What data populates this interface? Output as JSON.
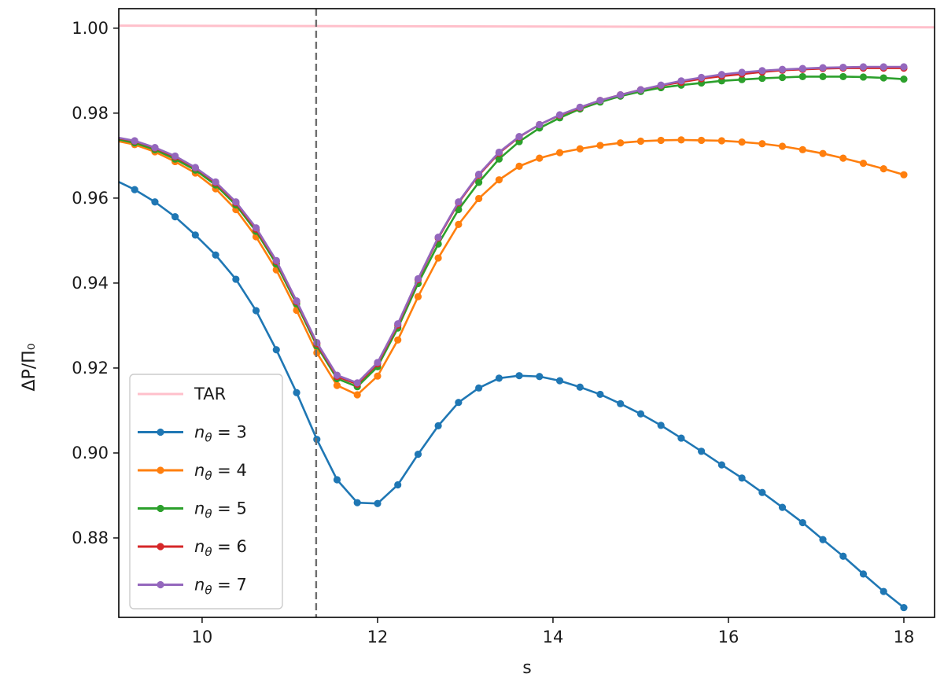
{
  "chart_data": {
    "type": "line",
    "title": "",
    "xlabel": "s",
    "ylabel": "ΔP/Π₀",
    "xlim": [
      9.05,
      18.35
    ],
    "ylim": [
      0.8613,
      1.0046
    ],
    "xticks": [
      10,
      12,
      14,
      16,
      18
    ],
    "xtick_labels": [
      "10",
      "12",
      "14",
      "16",
      "18"
    ],
    "yticks": [
      0.88,
      0.9,
      0.92,
      0.94,
      0.96,
      0.98,
      1.0
    ],
    "ytick_labels": [
      "0.88",
      "0.90",
      "0.92",
      "0.94",
      "0.96",
      "0.98",
      "1.00"
    ],
    "grid": false,
    "legend_position": "lower-left",
    "vline": {
      "x": 11.3,
      "style": "dashed",
      "color": "#6e6e6e"
    },
    "x": [
      9.0,
      9.231,
      9.462,
      9.692,
      9.923,
      10.154,
      10.385,
      10.615,
      10.846,
      11.077,
      11.308,
      11.538,
      11.769,
      12.0,
      12.231,
      12.462,
      12.692,
      12.923,
      13.154,
      13.385,
      13.615,
      13.846,
      14.077,
      14.308,
      14.538,
      14.769,
      15.0,
      15.231,
      15.462,
      15.692,
      15.923,
      16.154,
      16.385,
      16.615,
      16.846,
      17.077,
      17.308,
      17.538,
      17.769,
      18.0
    ],
    "series": [
      {
        "name": "TAR",
        "color": "#ffc0cb",
        "markers": false,
        "x": [
          9.0,
          18.35
        ],
        "values": [
          1.0006,
          1.0002
        ]
      },
      {
        "name": "3",
        "color": "#1f77b4",
        "markers": true,
        "values": [
          0.9643,
          0.962,
          0.9591,
          0.9556,
          0.9513,
          0.9466,
          0.9409,
          0.9335,
          0.9243,
          0.9142,
          0.9032,
          0.8937,
          0.8883,
          0.8881,
          0.8925,
          0.8997,
          0.9064,
          0.9119,
          0.9153,
          0.9176,
          0.9182,
          0.918,
          0.917,
          0.9155,
          0.9138,
          0.9116,
          0.9092,
          0.9065,
          0.9035,
          0.9004,
          0.8972,
          0.8941,
          0.8907,
          0.8872,
          0.8836,
          0.8796,
          0.8757,
          0.8715,
          0.8674,
          0.8636
        ]
      },
      {
        "name": "4",
        "color": "#ff7f0e",
        "markers": true,
        "values": [
          0.9736,
          0.9726,
          0.9709,
          0.9686,
          0.9659,
          0.9622,
          0.9573,
          0.9509,
          0.9431,
          0.9336,
          0.9236,
          0.9159,
          0.9137,
          0.9181,
          0.9266,
          0.9368,
          0.9459,
          0.9538,
          0.9599,
          0.9643,
          0.9675,
          0.9694,
          0.9707,
          0.9716,
          0.9724,
          0.973,
          0.9734,
          0.9736,
          0.9737,
          0.9736,
          0.9735,
          0.9732,
          0.9728,
          0.9722,
          0.9714,
          0.9705,
          0.9694,
          0.9682,
          0.9669,
          0.9655
        ]
      },
      {
        "name": "5",
        "color": "#2ca02c",
        "markers": true,
        "values": [
          0.974,
          0.973,
          0.9714,
          0.9692,
          0.9666,
          0.9631,
          0.9584,
          0.9522,
          0.9445,
          0.9351,
          0.9252,
          0.9175,
          0.9156,
          0.9203,
          0.9294,
          0.9399,
          0.9492,
          0.9573,
          0.9637,
          0.9692,
          0.9733,
          0.9765,
          0.9789,
          0.981,
          0.9826,
          0.984,
          0.9851,
          0.986,
          0.9866,
          0.9871,
          0.9876,
          0.9879,
          0.9882,
          0.9884,
          0.9886,
          0.9886,
          0.9886,
          0.9885,
          0.9883,
          0.988
        ]
      },
      {
        "name": "6",
        "color": "#d62728",
        "markers": true,
        "values": [
          0.9743,
          0.9734,
          0.9718,
          0.9697,
          0.9671,
          0.9636,
          0.9589,
          0.9527,
          0.9451,
          0.9356,
          0.9257,
          0.918,
          0.9162,
          0.921,
          0.9301,
          0.9408,
          0.9506,
          0.9589,
          0.9654,
          0.9706,
          0.9744,
          0.9773,
          0.9795,
          0.9813,
          0.983,
          0.9843,
          0.9855,
          0.9865,
          0.9873,
          0.9881,
          0.9887,
          0.9892,
          0.9897,
          0.9901,
          0.9903,
          0.9905,
          0.9906,
          0.9906,
          0.9906,
          0.9906
        ]
      },
      {
        "name": "7",
        "color": "#9467bd",
        "markers": true,
        "values": [
          0.9744,
          0.9735,
          0.9719,
          0.9699,
          0.9672,
          0.9638,
          0.9591,
          0.953,
          0.9453,
          0.9358,
          0.926,
          0.9183,
          0.9165,
          0.9213,
          0.9304,
          0.941,
          0.9508,
          0.9591,
          0.9656,
          0.9708,
          0.9745,
          0.9773,
          0.9796,
          0.9814,
          0.983,
          0.9843,
          0.9855,
          0.9866,
          0.9876,
          0.9884,
          0.9891,
          0.9896,
          0.99,
          0.9903,
          0.9905,
          0.9907,
          0.9908,
          0.9909,
          0.9909,
          0.9909
        ]
      }
    ]
  }
}
